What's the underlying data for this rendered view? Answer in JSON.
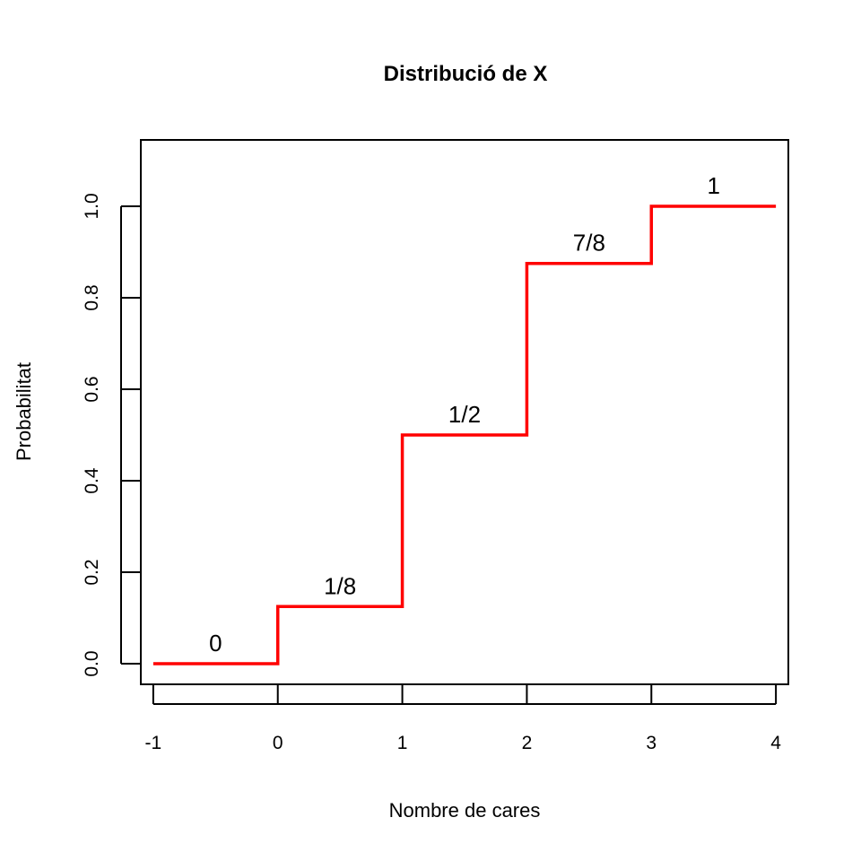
{
  "chart_data": {
    "type": "line",
    "title": "Distribució de X",
    "xlabel": "Nombre de cares",
    "ylabel": "Probabilitat",
    "xlim": [
      -1.1,
      4.1
    ],
    "ylim": [
      -0.045,
      1.145
    ],
    "grid": false,
    "legend": "none",
    "line_color": "#ff0000",
    "x_ticks": [
      -1,
      0,
      1,
      2,
      3,
      4
    ],
    "x_tick_labels": [
      "-1",
      "0",
      "1",
      "2",
      "3",
      "4"
    ],
    "y_ticks": [
      0.0,
      0.2,
      0.4,
      0.6,
      0.8,
      1.0
    ],
    "y_tick_labels": [
      "0.0",
      "0.2",
      "0.4",
      "0.6",
      "0.8",
      "1.0"
    ],
    "steps": [
      {
        "x_start": -1,
        "x_end": 0,
        "y": 0,
        "label": "0"
      },
      {
        "x_start": 0,
        "x_end": 1,
        "y": 0.125,
        "label": "1/8"
      },
      {
        "x_start": 1,
        "x_end": 2,
        "y": 0.5,
        "label": "1/2"
      },
      {
        "x_start": 2,
        "x_end": 3,
        "y": 0.875,
        "label": "7/8"
      },
      {
        "x_start": 3,
        "x_end": 4,
        "y": 1.0,
        "label": "1"
      }
    ]
  }
}
